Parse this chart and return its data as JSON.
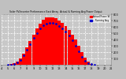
{
  "title": "Solar PV/Inverter Performance East Array  Actual & Running Avg Power Output",
  "bg_color": "#c0c0c0",
  "plot_bg_color": "#c8c8c8",
  "grid_color": "#ffffff",
  "bar_color": "#ff0000",
  "dot_color": "#0000cc",
  "hours": [
    5,
    5.5,
    6,
    6.5,
    7,
    7.5,
    8,
    8.5,
    9,
    9.5,
    10,
    10.5,
    11,
    11.5,
    12,
    12.5,
    13,
    13.5,
    14,
    14.5,
    15,
    15.5,
    16,
    16.5,
    17,
    17.5,
    18,
    18.5,
    19
  ],
  "power": [
    2,
    8,
    25,
    55,
    105,
    175,
    270,
    370,
    470,
    570,
    650,
    710,
    745,
    755,
    750,
    740,
    705,
    665,
    615,
    555,
    480,
    395,
    295,
    195,
    110,
    50,
    15,
    4,
    1
  ],
  "avg_hours": [
    5,
    5.5,
    6,
    6.5,
    7,
    7.5,
    8,
    8.5,
    9,
    9.5,
    10,
    10.5,
    11,
    11.5,
    12,
    12.5,
    13,
    13.5,
    14,
    14.5,
    15,
    15.5,
    16,
    16.5,
    17,
    17.5,
    18,
    18.5
  ],
  "avg_power": [
    1,
    4,
    15,
    35,
    80,
    150,
    240,
    330,
    420,
    500,
    570,
    620,
    650,
    665,
    660,
    645,
    615,
    575,
    525,
    465,
    390,
    305,
    210,
    125,
    60,
    22,
    7,
    2
  ],
  "ylim": [
    0,
    800
  ],
  "xlim": [
    4,
    21
  ],
  "ytick_vals": [
    100,
    200,
    300,
    400,
    500,
    600,
    700,
    800
  ],
  "xtick_vals": [
    4,
    5,
    6,
    7,
    8,
    9,
    10,
    11,
    12,
    13,
    14,
    15,
    16,
    17,
    18,
    19,
    20,
    21
  ],
  "legend_items": [
    {
      "label": "Actual Power W",
      "color": "#ff0000"
    },
    {
      "label": "-- Running Avg",
      "color": "#0000cc"
    }
  ]
}
